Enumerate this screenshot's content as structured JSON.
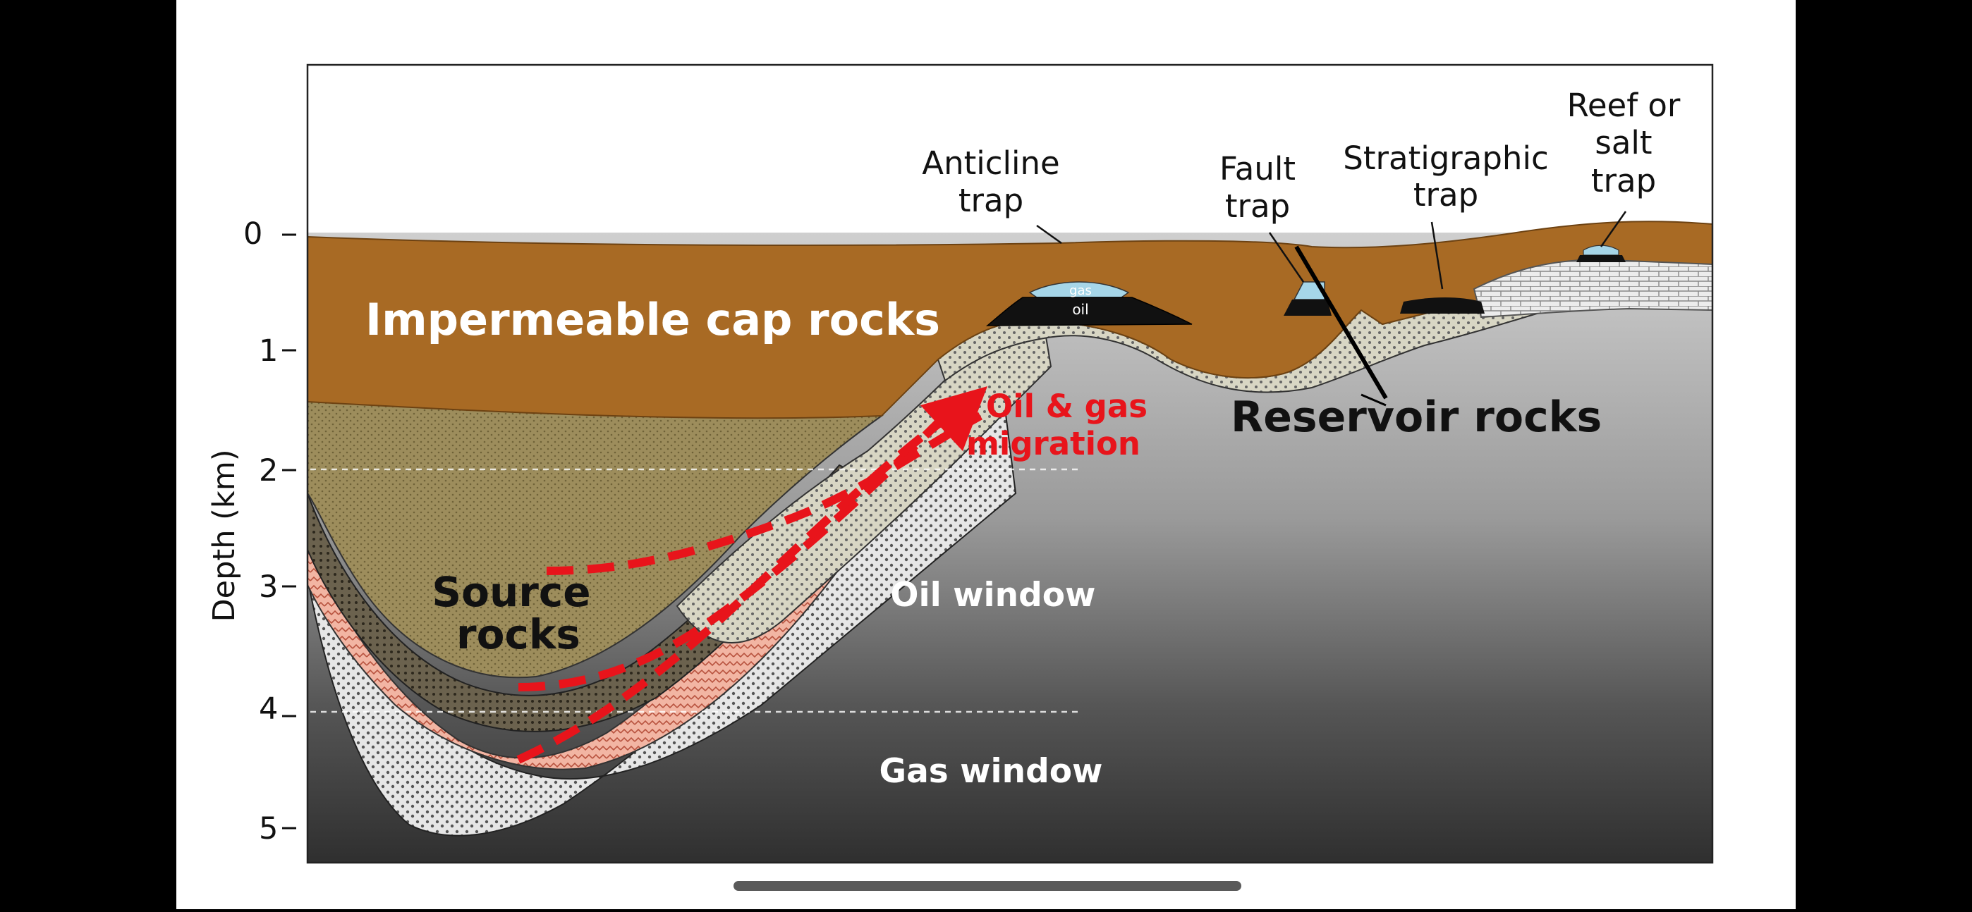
{
  "diagram": {
    "axis": {
      "label": "Depth (km)",
      "ticks": [
        "0",
        "1",
        "2",
        "3",
        "4",
        "5"
      ]
    },
    "labels": {
      "cap_rocks": "Impermeable cap rocks",
      "source_line1": "Source",
      "source_line2": "rocks",
      "migration_line1": "Oil & gas",
      "migration_line2": "migration",
      "oil_window": "Oil window",
      "gas_window": "Gas window",
      "reservoir": "Reservoir rocks",
      "anticline_line1": "Anticline",
      "anticline_line2": "trap",
      "fault_line1": "Fault",
      "fault_line2": "trap",
      "strat_line1": "Stratigraphic",
      "strat_line2": "trap",
      "reef_line1": "Reef or",
      "reef_line2": "salt",
      "reef_line3": "trap",
      "gas_tag": "gas",
      "oil_tag": "oil"
    },
    "colors": {
      "cap_rock": "#a86a24",
      "source_rock": "#9c8c5a",
      "reservoir": "#d9d6c2",
      "oil": "#111111",
      "gas": "#a6d6e8",
      "migration_arrow": "#e8141b",
      "salt": "#e5e5e5"
    }
  }
}
